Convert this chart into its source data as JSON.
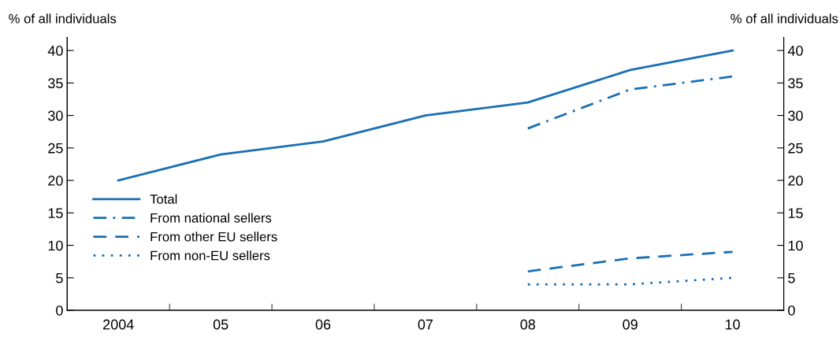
{
  "chart_data": {
    "type": "line",
    "ylabel": "% of all individuals",
    "y2label": "% of all individuals",
    "categories": [
      "2004",
      "05",
      "06",
      "07",
      "08",
      "09",
      "10"
    ],
    "series": [
      {
        "name": "Total",
        "color": "#1a6fb5",
        "line_style": "solid",
        "values": [
          20,
          24,
          26,
          30,
          32,
          37,
          40
        ]
      },
      {
        "name": "From national sellers",
        "color": "#1a6fb5",
        "line_style": "dashdot",
        "values": [
          null,
          null,
          null,
          null,
          28,
          34,
          36
        ]
      },
      {
        "name": "From other EU sellers",
        "color": "#1a6fb5",
        "line_style": "dashed",
        "values": [
          null,
          null,
          null,
          null,
          6,
          8,
          9
        ]
      },
      {
        "name": "From non-EU sellers",
        "color": "#1a6fb5",
        "line_style": "dotted",
        "values": [
          null,
          null,
          null,
          null,
          4,
          4,
          5
        ]
      }
    ],
    "ylim": [
      0,
      42
    ],
    "yticks": [
      0,
      5,
      10,
      15,
      20,
      25,
      30,
      35,
      40
    ],
    "y2lim": [
      0,
      42
    ],
    "y2ticks": [
      0,
      5,
      10,
      15,
      20,
      25,
      30,
      35,
      40
    ],
    "grid": false,
    "legend": "left",
    "marker": "none"
  }
}
